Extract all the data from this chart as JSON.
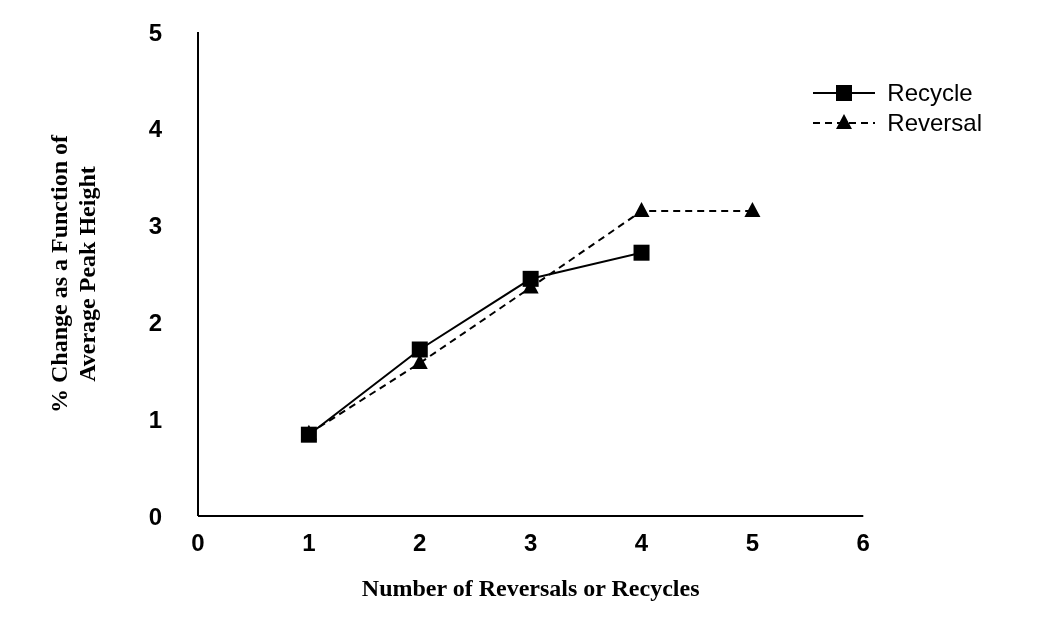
{
  "chart_data": {
    "type": "line",
    "xlabel": "Number of Reversals or Recycles",
    "ylabel": "% Change as a Function of\nAverage Peak Height",
    "x": [
      1,
      2,
      3,
      4,
      5
    ],
    "series": [
      {
        "name": "Recycle",
        "color": "#000000",
        "values": [
          0.84,
          1.72,
          2.45,
          2.72,
          null
        ],
        "marker": "square",
        "line_style": "solid"
      },
      {
        "name": "Reversal",
        "color": "#000000",
        "values": [
          0.85,
          1.58,
          2.36,
          3.15,
          3.15
        ],
        "marker": "triangle",
        "line_style": "dashed"
      }
    ],
    "xlim": [
      0,
      6
    ],
    "xticks": [
      0,
      1,
      2,
      3,
      4,
      5,
      6
    ],
    "ylim": [
      0,
      5
    ],
    "yticks": [
      0,
      1,
      2,
      3,
      4,
      5
    ],
    "grid": false,
    "legend": "top right"
  }
}
